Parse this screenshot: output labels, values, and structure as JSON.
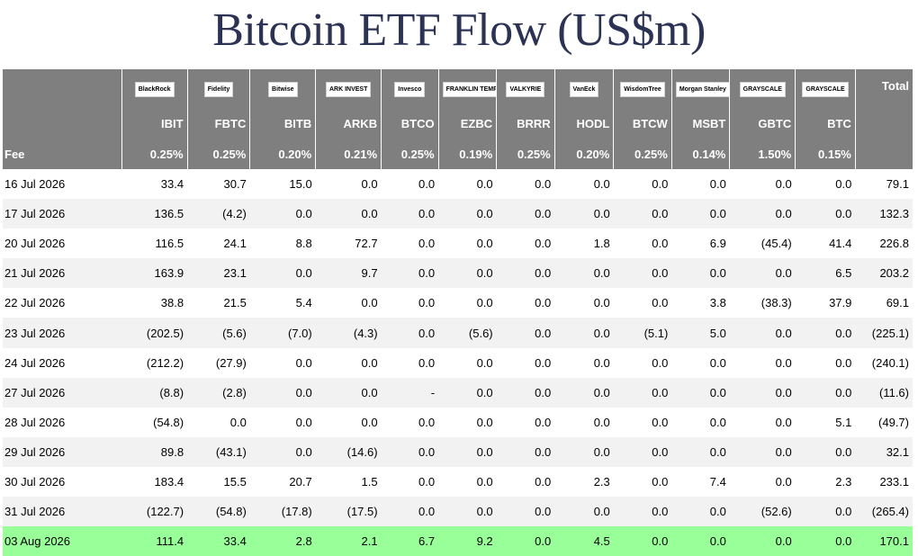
{
  "title": "Bitcoin ETF Flow (US$m)",
  "columns": [
    {
      "logo": "BlackRock",
      "ticker": "IBIT",
      "fee": "0.25%"
    },
    {
      "logo": "Fidelity",
      "ticker": "FBTC",
      "fee": "0.25%"
    },
    {
      "logo": "Bitwise",
      "ticker": "BITB",
      "fee": "0.20%"
    },
    {
      "logo": "ARK INVEST",
      "ticker": "ARKB",
      "fee": "0.21%"
    },
    {
      "logo": "Invesco",
      "ticker": "BTCO",
      "fee": "0.25%"
    },
    {
      "logo": "FRANKLIN TEMPLETON",
      "ticker": "EZBC",
      "fee": "0.19%"
    },
    {
      "logo": "VALKYRIE",
      "ticker": "BRRR",
      "fee": "0.25%"
    },
    {
      "logo": "VanEck",
      "ticker": "HODL",
      "fee": "0.20%"
    },
    {
      "logo": "WisdomTree",
      "ticker": "BTCW",
      "fee": "0.25%"
    },
    {
      "logo": "Morgan Stanley",
      "ticker": "MSBT",
      "fee": "0.14%"
    },
    {
      "logo": "GRAYSCALE",
      "ticker": "GBTC",
      "fee": "1.50%"
    },
    {
      "logo": "GRAYSCALE",
      "ticker": "BTC",
      "fee": "0.15%"
    }
  ],
  "total_label": "Total",
  "fee_label": "Fee",
  "colors": {
    "header_bg": "#7f7f7f",
    "alt_row_bg": "#f2f2f2",
    "highlight_row_bg": "#99ff99",
    "negative": "#e00000",
    "zero": "#c0c0c0"
  },
  "rows": [
    {
      "date": "16 Jul 2026",
      "values": [
        "33.4",
        "30.7",
        "15.0",
        "0.0",
        "0.0",
        "0.0",
        "0.0",
        "0.0",
        "0.0",
        "0.0",
        "0.0",
        "0.0"
      ],
      "total": "79.1"
    },
    {
      "date": "17 Jul 2026",
      "values": [
        "136.5",
        "(4.2)",
        "0.0",
        "0.0",
        "0.0",
        "0.0",
        "0.0",
        "0.0",
        "0.0",
        "0.0",
        "0.0",
        "0.0"
      ],
      "total": "132.3"
    },
    {
      "date": "20 Jul 2026",
      "values": [
        "116.5",
        "24.1",
        "8.8",
        "72.7",
        "0.0",
        "0.0",
        "0.0",
        "1.8",
        "0.0",
        "6.9",
        "(45.4)",
        "41.4"
      ],
      "total": "226.8"
    },
    {
      "date": "21 Jul 2026",
      "values": [
        "163.9",
        "23.1",
        "0.0",
        "9.7",
        "0.0",
        "0.0",
        "0.0",
        "0.0",
        "0.0",
        "0.0",
        "0.0",
        "6.5"
      ],
      "total": "203.2"
    },
    {
      "date": "22 Jul 2026",
      "values": [
        "38.8",
        "21.5",
        "5.4",
        "0.0",
        "0.0",
        "0.0",
        "0.0",
        "0.0",
        "0.0",
        "3.8",
        "(38.3)",
        "37.9"
      ],
      "total": "69.1"
    },
    {
      "date": "23 Jul 2026",
      "values": [
        "(202.5)",
        "(5.6)",
        "(7.0)",
        "(4.3)",
        "0.0",
        "(5.6)",
        "0.0",
        "0.0",
        "(5.1)",
        "5.0",
        "0.0",
        "0.0"
      ],
      "total": "(225.1)"
    },
    {
      "date": "24 Jul 2026",
      "values": [
        "(212.2)",
        "(27.9)",
        "0.0",
        "0.0",
        "0.0",
        "0.0",
        "0.0",
        "0.0",
        "0.0",
        "0.0",
        "0.0",
        "0.0"
      ],
      "total": "(240.1)"
    },
    {
      "date": "27 Jul 2026",
      "values": [
        "(8.8)",
        "(2.8)",
        "0.0",
        "0.0",
        "-",
        "0.0",
        "0.0",
        "0.0",
        "0.0",
        "0.0",
        "0.0",
        "0.0"
      ],
      "total": "(11.6)"
    },
    {
      "date": "28 Jul 2026",
      "values": [
        "(54.8)",
        "0.0",
        "0.0",
        "0.0",
        "0.0",
        "0.0",
        "0.0",
        "0.0",
        "0.0",
        "0.0",
        "0.0",
        "5.1"
      ],
      "total": "(49.7)"
    },
    {
      "date": "29 Jul 2026",
      "values": [
        "89.8",
        "(43.1)",
        "0.0",
        "(14.6)",
        "0.0",
        "0.0",
        "0.0",
        "0.0",
        "0.0",
        "0.0",
        "0.0",
        "0.0"
      ],
      "total": "32.1"
    },
    {
      "date": "30 Jul 2026",
      "values": [
        "183.4",
        "15.5",
        "20.7",
        "1.5",
        "0.0",
        "0.0",
        "0.0",
        "2.3",
        "0.0",
        "7.4",
        "0.0",
        "2.3"
      ],
      "total": "233.1"
    },
    {
      "date": "31 Jul 2026",
      "values": [
        "(122.7)",
        "(54.8)",
        "(17.8)",
        "(17.5)",
        "0.0",
        "0.0",
        "0.0",
        "0.0",
        "0.0",
        "0.0",
        "(52.6)",
        "0.0"
      ],
      "total": "(265.4)"
    },
    {
      "date": "03 Aug 2026",
      "values": [
        "111.4",
        "33.4",
        "2.8",
        "2.1",
        "6.7",
        "9.2",
        "0.0",
        "4.5",
        "0.0",
        "0.0",
        "0.0",
        "0.0"
      ],
      "total": "170.1",
      "highlight": true
    }
  ]
}
